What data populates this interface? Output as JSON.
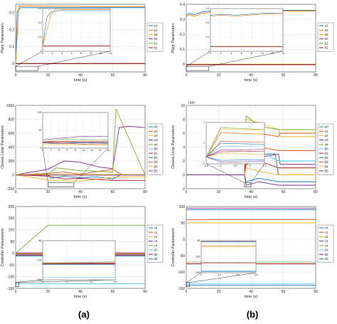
{
  "figure": {
    "label_a": "(a)",
    "label_b": "(b)"
  },
  "chart_data": [
    {
      "id": "a1",
      "type": "line",
      "ylabel": "Plant Parameters",
      "xlabel": "time (s)",
      "xlim": [
        0,
        80
      ],
      "ylim": [
        -0.05,
        0.35
      ],
      "xticks": [
        0,
        20,
        40,
        60,
        80
      ],
      "yticks": [
        0,
        0.1,
        0.2,
        0.3
      ],
      "grid": true,
      "legend": [
        "a1",
        "a2",
        "a3",
        "b0",
        "b1",
        "b2"
      ],
      "colors": [
        "#1f77b4",
        "#ff7f0e",
        "#f2b700",
        "#7e2f8e",
        "#77ac30",
        "#a2142f"
      ],
      "series": [
        {
          "x": [
            0,
            1,
            2,
            3,
            80
          ],
          "y": [
            0,
            0.31,
            0.32,
            0.33,
            0.33
          ]
        },
        {
          "x": [
            0,
            2,
            80
          ],
          "y": [
            0,
            0.34,
            0.335
          ]
        },
        {
          "x": [
            0,
            80
          ],
          "y": [
            0.001,
            0.001
          ]
        },
        {
          "x": [
            0,
            80
          ],
          "y": [
            0,
            0
          ]
        },
        {
          "x": [
            0,
            80
          ],
          "y": [
            -0.001,
            -0.001
          ]
        },
        {
          "x": [
            0,
            80
          ],
          "y": [
            -0.002,
            -0.002
          ]
        }
      ],
      "inset": {
        "xticks": [
          0,
          2,
          4,
          6,
          8,
          10,
          12,
          14
        ],
        "yticks": [
          0,
          0.1,
          0.2,
          0.3
        ]
      }
    },
    {
      "id": "b1",
      "type": "line",
      "ylabel": "Plant Parameters",
      "xlabel": "time (s)",
      "xlim": [
        0,
        80
      ],
      "ylim": [
        -0.05,
        0.4
      ],
      "xticks": [
        0,
        20,
        40,
        60,
        80
      ],
      "yticks": [
        0,
        0.1,
        0.2,
        0.3,
        0.4
      ],
      "grid": true,
      "legend": [
        "a1",
        "a2",
        "a3",
        "b0",
        "b1",
        "b2"
      ],
      "colors": [
        "#1f77b4",
        "#ff7f0e",
        "#f2b700",
        "#7e2f8e",
        "#77ac30",
        "#a2142f"
      ],
      "series": [
        {
          "x": [
            0,
            2,
            5,
            10,
            20,
            80
          ],
          "y": [
            0.33,
            0.34,
            0.33,
            0.35,
            0.36,
            0.36
          ]
        },
        {
          "x": [
            0,
            2,
            5,
            10,
            20,
            80
          ],
          "y": [
            0.32,
            0.33,
            0.32,
            0.34,
            0.355,
            0.355
          ]
        },
        {
          "x": [
            0,
            80
          ],
          "y": [
            0.002,
            0.002
          ]
        },
        {
          "x": [
            0,
            80
          ],
          "y": [
            0,
            0
          ]
        },
        {
          "x": [
            0,
            80
          ],
          "y": [
            -0.001,
            -0.001
          ]
        },
        {
          "x": [
            0,
            80
          ],
          "y": [
            -0.002,
            -0.002
          ]
        }
      ],
      "inset": {
        "xticks": [
          0,
          2,
          4,
          6,
          8,
          10,
          12,
          14
        ],
        "yticks": [
          0,
          0.1,
          0.2,
          0.3
        ]
      }
    },
    {
      "id": "a2",
      "type": "line",
      "ylabel": "Closed Loop Parameters",
      "xlabel": "time (s)",
      "xlim": [
        0,
        80
      ],
      "ylim": [
        -200,
        1000
      ],
      "xticks": [
        0,
        20,
        40,
        60,
        80
      ],
      "yticks": [
        -200,
        0,
        200,
        400,
        600,
        800,
        1000
      ],
      "grid": true,
      "legend": [
        "α0",
        "α1",
        "α2",
        "α3",
        "α4",
        "β0",
        "β1",
        "β2",
        "β3",
        "β4",
        "β5"
      ],
      "colors": [
        "#1f77b4",
        "#d95319",
        "#edb120",
        "#7e2f8e",
        "#77ac30",
        "#4dbeee",
        "#a2142f",
        "#1f77b4",
        "#d95319",
        "#edb120",
        "#7e2f8e"
      ],
      "series": [
        {
          "x": [
            0,
            20,
            22,
            30,
            40,
            50,
            60,
            65,
            80
          ],
          "y": [
            0,
            0,
            -50,
            -20,
            -40,
            -30,
            -60,
            0,
            0
          ]
        },
        {
          "x": [
            0,
            20,
            30,
            40,
            60,
            66,
            80
          ],
          "y": [
            0,
            20,
            40,
            10,
            80,
            0,
            0
          ]
        },
        {
          "x": [
            0,
            22,
            40,
            62,
            80
          ],
          "y": [
            0,
            -80,
            -90,
            -30,
            -30
          ]
        },
        {
          "x": [
            0,
            20,
            30,
            40,
            52,
            60,
            64,
            70,
            80
          ],
          "y": [
            0,
            80,
            200,
            180,
            110,
            90,
            680,
            700,
            680
          ]
        },
        {
          "x": [
            0,
            20,
            25,
            40,
            60,
            62,
            80
          ],
          "y": [
            0,
            10,
            100,
            60,
            40,
            950,
            0
          ]
        },
        {
          "x": [
            0,
            80
          ],
          "y": [
            0,
            0
          ]
        },
        {
          "x": [
            0,
            20,
            30,
            40,
            60,
            80
          ],
          "y": [
            0,
            -20,
            -60,
            -50,
            -80,
            -80
          ]
        },
        {
          "x": [
            0,
            80
          ],
          "y": [
            2,
            2
          ]
        },
        {
          "x": [
            0,
            80
          ],
          "y": [
            -2,
            -2
          ]
        },
        {
          "x": [
            0,
            80
          ],
          "y": [
            4,
            4
          ]
        },
        {
          "x": [
            0,
            80
          ],
          "y": [
            -4,
            -4
          ]
        }
      ],
      "inset": {
        "xticks": [
          0,
          2,
          4,
          6,
          8,
          10,
          12,
          14,
          16
        ],
        "yticks": [
          0,
          50,
          100
        ]
      }
    },
    {
      "id": "b2",
      "type": "line",
      "ylabel": "Closed Loop Parameters",
      "xlabel": "time (s)",
      "xlim": [
        0,
        80
      ],
      "ylim": [
        -2,
        10
      ],
      "exponent": "×10⁴",
      "xticks": [
        0,
        20,
        40,
        60,
        80
      ],
      "yticks": [
        -2,
        0,
        2,
        4,
        6,
        8,
        10
      ],
      "grid": true,
      "legend": [
        "α0",
        "α1",
        "α2",
        "α3",
        "α4",
        "β0",
        "β1",
        "β2",
        "β3",
        "β4",
        "β5"
      ],
      "colors": [
        "#1f77b4",
        "#d95319",
        "#edb120",
        "#7e2f8e",
        "#77ac30",
        "#4dbeee",
        "#a2142f",
        "#1f77b4",
        "#d95319",
        "#edb120",
        "#7e2f8e"
      ],
      "series": [
        {
          "x": [
            0,
            36,
            37,
            45,
            55,
            57,
            80
          ],
          "y": [
            0,
            0,
            4,
            3,
            3,
            0,
            0
          ]
        },
        {
          "x": [
            0,
            36,
            37,
            45,
            57,
            58,
            80
          ],
          "y": [
            0,
            0,
            7,
            6,
            5.5,
            6,
            6
          ]
        },
        {
          "x": [
            0,
            36,
            37,
            45,
            57,
            58,
            80
          ],
          "y": [
            0,
            0,
            8,
            7.5,
            6.5,
            5.5,
            5.5
          ]
        },
        {
          "x": [
            0,
            36,
            37,
            45,
            57,
            58,
            80
          ],
          "y": [
            0,
            0,
            2,
            2.5,
            3,
            1.5,
            1.5
          ]
        },
        {
          "x": [
            0,
            36,
            37,
            45,
            57,
            80
          ],
          "y": [
            0,
            0,
            8.5,
            7,
            6.5,
            6.5
          ]
        },
        {
          "x": [
            0,
            36,
            37,
            45,
            57,
            80
          ],
          "y": [
            0,
            0,
            3,
            3.5,
            2,
            2
          ]
        },
        {
          "x": [
            0,
            36,
            37,
            45,
            57,
            80
          ],
          "y": [
            0,
            0,
            1.5,
            2,
            1,
            1
          ]
        },
        {
          "x": [
            0,
            36,
            37,
            45,
            57,
            80
          ],
          "y": [
            0,
            0,
            -1,
            -0.5,
            -1,
            -1
          ]
        },
        {
          "x": [
            0,
            36,
            37,
            45,
            57,
            80
          ],
          "y": [
            0,
            0,
            4.5,
            4,
            3.5,
            3.5
          ]
        },
        {
          "x": [
            0,
            36,
            37,
            45,
            57,
            80
          ],
          "y": [
            0,
            0,
            1,
            0.5,
            0,
            0
          ]
        },
        {
          "x": [
            0,
            36,
            37,
            45,
            57,
            80
          ],
          "y": [
            0,
            0,
            -1.5,
            -1,
            -1.5,
            -1.5
          ]
        }
      ],
      "inset": {
        "xticks": [
          -0.5,
          0,
          0.5,
          1,
          1.5
        ],
        "yticks": [
          -1,
          0,
          1
        ]
      }
    },
    {
      "id": "a3",
      "type": "line",
      "ylabel": "Controller Parameters",
      "xlabel": "time (s)",
      "xlim": [
        0,
        80
      ],
      "ylim": [
        -150,
        200
      ],
      "xticks": [
        0,
        20,
        40,
        60,
        80
      ],
      "yticks": [
        -150,
        -100,
        -50,
        0,
        50,
        100,
        150,
        200
      ],
      "grid": true,
      "legend": [
        "c0",
        "c1",
        "c2",
        "c3",
        "c4",
        "d1",
        "d2",
        "d3"
      ],
      "colors": [
        "#1f77b4",
        "#d95319",
        "#edb120",
        "#7e2f8e",
        "#77ac30",
        "#4dbeee",
        "#a2142f",
        "#1f77b4"
      ],
      "series": [
        {
          "x": [
            0,
            80
          ],
          "y": [
            -5,
            -5
          ]
        },
        {
          "x": [
            0,
            80
          ],
          "y": [
            -3,
            -3
          ]
        },
        {
          "x": [
            0,
            80
          ],
          "y": [
            0,
            0
          ]
        },
        {
          "x": [
            0,
            80
          ],
          "y": [
            2,
            2
          ]
        },
        {
          "x": [
            0,
            20,
            30,
            80
          ],
          "y": [
            0,
            120,
            120,
            120
          ]
        },
        {
          "x": [
            0,
            80
          ],
          "y": [
            -130,
            -130
          ]
        },
        {
          "x": [
            0,
            80
          ],
          "y": [
            -8,
            -8
          ]
        },
        {
          "x": [
            0,
            80
          ],
          "y": [
            -12,
            -12
          ]
        }
      ],
      "inset": {
        "xticks": [
          0,
          0.2,
          0.4,
          0.6
        ],
        "yticks": [
          -120,
          -100,
          -80
        ]
      }
    },
    {
      "id": "b3",
      "type": "line",
      "ylabel": "Controller Parameters",
      "xlabel": "time (s)",
      "xlim": [
        0,
        80
      ],
      "ylim": [
        -150,
        100
      ],
      "xticks": [
        0,
        20,
        40,
        60,
        80
      ],
      "yticks": [
        -150,
        -100,
        -50,
        0,
        50,
        100
      ],
      "grid": true,
      "legend": [
        "c0",
        "c1",
        "c2",
        "c3",
        "c4",
        "d1",
        "d2",
        "d3"
      ],
      "colors": [
        "#1f77b4",
        "#d95319",
        "#edb120",
        "#7e2f8e",
        "#77ac30",
        "#4dbeee",
        "#a2142f",
        "#1f77b4"
      ],
      "series": [
        {
          "x": [
            0,
            80
          ],
          "y": [
            90,
            90
          ]
        },
        {
          "x": [
            0,
            80
          ],
          "y": [
            60,
            60
          ]
        },
        {
          "x": [
            0,
            80
          ],
          "y": [
            50,
            50
          ]
        },
        {
          "x": [
            0,
            80
          ],
          "y": [
            95,
            95
          ]
        },
        {
          "x": [
            0,
            80
          ],
          "y": [
            -70,
            -70
          ]
        },
        {
          "x": [
            0,
            80
          ],
          "y": [
            -135,
            -135
          ]
        },
        {
          "x": [
            0,
            80
          ],
          "y": [
            -75,
            -75
          ]
        },
        {
          "x": [
            0,
            80
          ],
          "y": [
            -140,
            -140
          ]
        }
      ],
      "inset": {
        "xticks": [
          0,
          0.2,
          0.4,
          0.6
        ],
        "yticks": [
          -150,
          -100,
          -50
        ]
      }
    }
  ]
}
